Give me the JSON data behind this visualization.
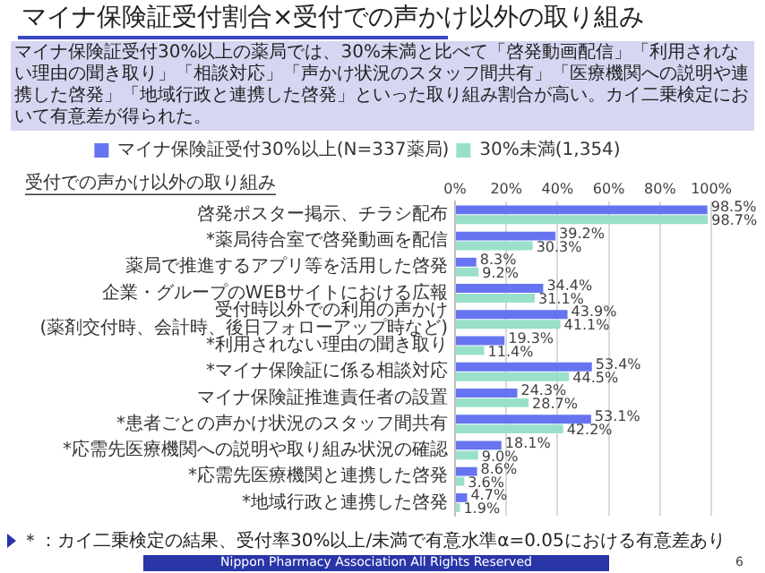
{
  "chart_data": {
    "type": "bar",
    "orientation": "horizontal",
    "title": "マイナ保険証受付割合×受付での声かけ以外の取り組み",
    "subtitle": "マイナ保険証受付30%以上の薬局では、30%未満と比べて「啓発動画配信」「利用されない理由の聞き取り」「相談対応」「声かけ状況のスタッフ間共有」「医療機関への説明や連携した啓発」「地域行政と連携した啓発」といった取り組み割合が高い。カイ二乗検定において有意差が得られた。",
    "ylabel": "受付での声かけ以外の取り組み",
    "categories": [
      "啓発ポスター掲示、チラシ配布",
      "*薬局待合室で啓発動画を配信",
      "薬局で推進するアプリ等を活用した啓発",
      "企業・グループのWEBサイトにおける広報",
      "受付時以外での利用の声かけ\n(薬剤交付時、会計時、後日フォローアップ時など)",
      "*利用されない理由の聞き取り",
      "*マイナ保険証に係る相談対応",
      "マイナ保険証推進責任者の設置",
      "*患者ごとの声かけ状況のスタッフ間共有",
      "*応需先医療機関への説明や取り組み状況の確認",
      "*応需先医療機関と連携した啓発",
      "*地域行政と連携した啓発"
    ],
    "series": [
      {
        "name": "マイナ保険証受付30%以上(N=337薬局)",
        "color": "#6674f2",
        "values": [
          98.5,
          39.2,
          8.3,
          34.4,
          43.9,
          19.3,
          53.4,
          24.3,
          53.1,
          18.1,
          8.6,
          4.7
        ],
        "value_labels": [
          "98.5%",
          "39.2%",
          "8.3%",
          "34.4%",
          "43.9%",
          "19.3%",
          "53.4%",
          "24.3%",
          "53.1%",
          "18.1%",
          "8.6%",
          "4.7%"
        ]
      },
      {
        "name": "30%未満(1,354)",
        "color": "#99e0cb",
        "values": [
          98.7,
          30.3,
          9.2,
          31.1,
          41.1,
          11.4,
          44.5,
          28.7,
          42.2,
          9.0,
          3.6,
          1.9
        ],
        "value_labels": [
          "98.7%",
          "30.3%",
          "9.2%",
          "31.1%",
          "41.1%",
          "11.4%",
          "44.5%",
          "28.7%",
          "42.2%",
          "9.0%",
          "3.6%",
          "1.9%"
        ]
      }
    ],
    "xlim": [
      0,
      100
    ],
    "xticks": [
      {
        "value": 0,
        "label": "0%"
      },
      {
        "value": 20,
        "label": "20%"
      },
      {
        "value": 40,
        "label": "40%"
      },
      {
        "value": 60,
        "label": "60%"
      },
      {
        "value": 80,
        "label": "80%"
      },
      {
        "value": 100,
        "label": "100%"
      }
    ],
    "grid": "x",
    "legend": "top",
    "annotations": [
      "＊：カイ二乗検定の結果、受付率30%以上/未満で有意水準α=0.05における有意差あり",
      "Nippon Pharmacy Association All Rights Reserved",
      "6"
    ]
  }
}
